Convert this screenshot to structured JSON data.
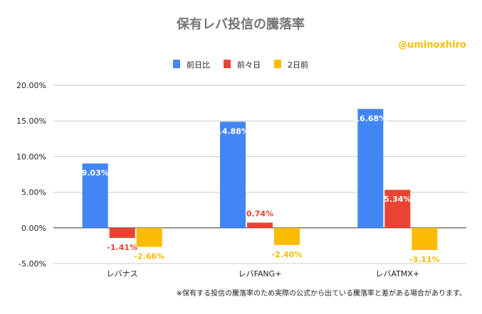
{
  "chart_data": {
    "type": "bar",
    "title": "保有レバ投信の騰落率",
    "watermark": "@uminoxhiro",
    "footnote": "※保有する投信の騰落率のため実際の公式から出ている騰落率と差がある場合があります。",
    "categories": [
      "レバナス",
      "レバFANG+",
      "レバATMX+"
    ],
    "series": [
      {
        "name": "前日比",
        "color": "#4285f4",
        "values": [
          9.03,
          14.88,
          16.68
        ],
        "labels": [
          "9.03%",
          "14.88%",
          "16.68%"
        ]
      },
      {
        "name": "前々日",
        "color": "#ea4335",
        "values": [
          -1.41,
          0.74,
          5.34
        ],
        "labels": [
          "-1.41%",
          "0.74%",
          "5.34%"
        ]
      },
      {
        "name": "2日前",
        "color": "#fbbc04",
        "values": [
          -2.66,
          -2.4,
          -3.11
        ],
        "labels": [
          "-2.66%",
          "-2.40%",
          "-3.11%"
        ]
      }
    ],
    "yticks": [
      "20.00%",
      "15.00%",
      "10.00%",
      "5.00%",
      "0.00%",
      "-5.00%"
    ],
    "ytick_values": [
      20,
      15,
      10,
      5,
      0,
      -5
    ],
    "ylim": [
      -5,
      20
    ],
    "grid": true,
    "legend": "top"
  }
}
